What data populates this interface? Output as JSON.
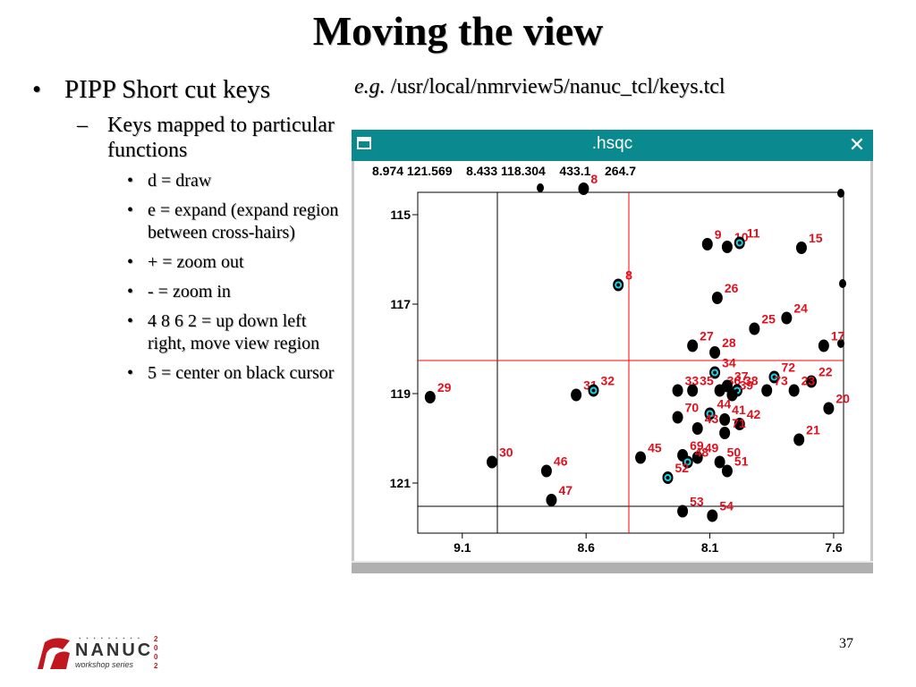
{
  "slide": {
    "title": "Moving the view",
    "bullet1": "PIPP Short cut keys",
    "bullet1_marker": "•",
    "bullet2": "Keys mapped to particular functions",
    "bullet2_marker": "–",
    "sub_marker": "•",
    "sub_items": [
      "d = draw",
      "e = expand (expand region between cross-hairs)",
      "+ = zoom out",
      "- = zoom in",
      "4 8 6 2 = up down left right, move view region",
      "5 = center on black cursor"
    ],
    "example_prefix": "e.g.",
    "example_path": " /usr/local/nmrview5/nanuc_tcl/keys.tcl",
    "page_number": "37"
  },
  "window": {
    "title": ".hsqc",
    "close_icon": "close-icon",
    "menu_icon": "window-menu-icon",
    "readout": "8.974 121.569    8.433 118.304    433.1    264.7"
  },
  "spectrum": {
    "x_ticks": [
      "9.1",
      "8.6",
      "8.1",
      "7.6"
    ],
    "y_ticks": [
      "115",
      "117",
      "119",
      "121"
    ],
    "colors": {
      "peak": "#000000",
      "label": "#e0101e",
      "cyan": "#19d4e6",
      "cursor_red": "#ff0000"
    },
    "peaks": [
      {
        "x": 8.61,
        "y": 114.42,
        "label": "8",
        "cyan": false
      },
      {
        "x": 8.11,
        "y": 115.66,
        "label": "9",
        "cyan": false
      },
      {
        "x": 8.03,
        "y": 115.72,
        "label": "10",
        "cyan": false
      },
      {
        "x": 7.98,
        "y": 115.63,
        "label": "11",
        "cyan": true
      },
      {
        "x": 7.73,
        "y": 115.74,
        "label": "15",
        "cyan": false
      },
      {
        "x": 8.47,
        "y": 116.57,
        "label": "8",
        "cyan": true
      },
      {
        "x": 8.07,
        "y": 116.86,
        "label": "26",
        "cyan": false
      },
      {
        "x": 7.79,
        "y": 117.31,
        "label": "24",
        "cyan": false
      },
      {
        "x": 7.92,
        "y": 117.55,
        "label": "25",
        "cyan": false
      },
      {
        "x": 7.64,
        "y": 117.93,
        "label": "17",
        "cyan": false
      },
      {
        "x": 8.17,
        "y": 117.93,
        "label": "27",
        "cyan": false
      },
      {
        "x": 8.08,
        "y": 118.08,
        "label": "28",
        "cyan": false
      },
      {
        "x": 8.08,
        "y": 118.53,
        "label": "34",
        "cyan": true
      },
      {
        "x": 7.84,
        "y": 118.63,
        "label": "72",
        "cyan": true
      },
      {
        "x": 7.69,
        "y": 118.73,
        "label": "22",
        "cyan": false
      },
      {
        "x": 7.76,
        "y": 118.93,
        "label": "23",
        "cyan": false
      },
      {
        "x": 9.23,
        "y": 119.08,
        "label": "29",
        "cyan": false
      },
      {
        "x": 8.64,
        "y": 119.03,
        "label": "31",
        "cyan": false
      },
      {
        "x": 8.57,
        "y": 118.93,
        "label": "32",
        "cyan": true
      },
      {
        "x": 8.23,
        "y": 118.93,
        "label": "33",
        "cyan": false
      },
      {
        "x": 8.17,
        "y": 118.93,
        "label": "35",
        "cyan": false
      },
      {
        "x": 8.06,
        "y": 118.93,
        "label": "36",
        "cyan": false
      },
      {
        "x": 8.03,
        "y": 118.83,
        "label": "37",
        "cyan": false
      },
      {
        "x": 7.99,
        "y": 118.93,
        "label": "38",
        "cyan": true
      },
      {
        "x": 8.01,
        "y": 119.03,
        "label": "39",
        "cyan": false
      },
      {
        "x": 7.87,
        "y": 118.93,
        "label": "73",
        "cyan": false
      },
      {
        "x": 7.62,
        "y": 119.33,
        "label": "20",
        "cyan": false
      },
      {
        "x": 8.23,
        "y": 119.53,
        "label": "70",
        "cyan": false
      },
      {
        "x": 8.1,
        "y": 119.45,
        "label": "44",
        "cyan": true
      },
      {
        "x": 8.04,
        "y": 119.58,
        "label": "41",
        "cyan": false
      },
      {
        "x": 7.98,
        "y": 119.68,
        "label": "42",
        "cyan": false
      },
      {
        "x": 8.15,
        "y": 119.78,
        "label": "43",
        "cyan": false
      },
      {
        "x": 8.04,
        "y": 119.88,
        "label": "71",
        "cyan": false
      },
      {
        "x": 7.74,
        "y": 120.03,
        "label": "21",
        "cyan": false
      },
      {
        "x": 8.98,
        "y": 120.53,
        "label": "30",
        "cyan": false
      },
      {
        "x": 8.76,
        "y": 120.73,
        "label": "46",
        "cyan": false
      },
      {
        "x": 8.38,
        "y": 120.43,
        "label": "45",
        "cyan": false
      },
      {
        "x": 8.21,
        "y": 120.38,
        "label": "69",
        "cyan": false
      },
      {
        "x": 8.15,
        "y": 120.43,
        "label": "49",
        "cyan": false
      },
      {
        "x": 8.19,
        "y": 120.53,
        "label": "48",
        "cyan": true
      },
      {
        "x": 8.06,
        "y": 120.53,
        "label": "50",
        "cyan": false
      },
      {
        "x": 8.03,
        "y": 120.73,
        "label": "51",
        "cyan": false
      },
      {
        "x": 8.27,
        "y": 120.88,
        "label": "52",
        "cyan": true
      },
      {
        "x": 8.74,
        "y": 121.38,
        "label": "47",
        "cyan": false
      },
      {
        "x": 8.21,
        "y": 121.63,
        "label": "53",
        "cyan": false
      },
      {
        "x": 8.09,
        "y": 121.73,
        "label": "54",
        "cyan": false
      }
    ]
  },
  "logo": {
    "word": "NANUC",
    "sub": "workshop series",
    "year_digits": [
      "2",
      "0",
      "0",
      "2"
    ]
  }
}
